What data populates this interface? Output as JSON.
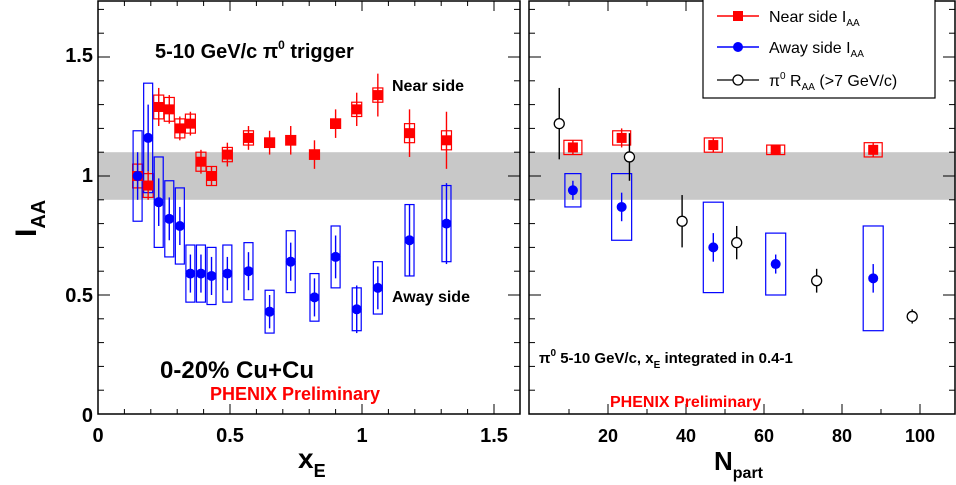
{
  "chart_data": [
    {
      "type": "scatter",
      "xlabel": "x",
      "xlabel_sub": "E",
      "ylabel": "I",
      "ylabel_sub": "AA",
      "xlim": [
        0,
        1.6
      ],
      "ylim": [
        0,
        1.75
      ],
      "x_ticks": [
        "0",
        "0.5",
        "1",
        "1.5"
      ],
      "y_ticks": [
        "0",
        "0.5",
        "1",
        "1.5"
      ],
      "band": [
        0.9,
        1.1
      ],
      "title_text": "5-10 GeV/c π",
      "title_sup": "0",
      "title_suffix": " trigger",
      "label_near": "Near side",
      "label_away": "Away side",
      "system_label": "0-20% Cu+Cu",
      "preliminary": "PHENIX Preliminary",
      "series": [
        {
          "name": "Near side I_AA",
          "color": "#ff0000",
          "marker": "square",
          "points": [
            {
              "x": 0.15,
              "y": 1.0,
              "err": 0.05,
              "sys": 0.05
            },
            {
              "x": 0.19,
              "y": 0.96,
              "err": 0.06,
              "sys": 0.05
            },
            {
              "x": 0.23,
              "y": 1.29,
              "err": 0.08,
              "sys": 0.05
            },
            {
              "x": 0.27,
              "y": 1.28,
              "err": 0.06,
              "sys": 0.05
            },
            {
              "x": 0.31,
              "y": 1.2,
              "err": 0.05,
              "sys": 0.04
            },
            {
              "x": 0.35,
              "y": 1.22,
              "err": 0.05,
              "sys": 0.04
            },
            {
              "x": 0.39,
              "y": 1.06,
              "err": 0.05,
              "sys": 0.04
            },
            {
              "x": 0.43,
              "y": 1.0,
              "err": 0.04,
              "sys": 0.04
            },
            {
              "x": 0.49,
              "y": 1.09,
              "err": 0.05,
              "sys": 0.03
            },
            {
              "x": 0.57,
              "y": 1.16,
              "err": 0.05,
              "sys": 0.03
            },
            {
              "x": 0.65,
              "y": 1.14,
              "err": 0.05,
              "sys": 0.02
            },
            {
              "x": 0.73,
              "y": 1.15,
              "err": 0.06,
              "sys": 0.02
            },
            {
              "x": 0.82,
              "y": 1.09,
              "err": 0.06,
              "sys": 0.02
            },
            {
              "x": 0.9,
              "y": 1.22,
              "err": 0.06,
              "sys": 0.02
            },
            {
              "x": 0.98,
              "y": 1.28,
              "err": 0.07,
              "sys": 0.03
            },
            {
              "x": 1.06,
              "y": 1.34,
              "err": 0.09,
              "sys": 0.03
            },
            {
              "x": 1.18,
              "y": 1.18,
              "err": 0.1,
              "sys": 0.04
            },
            {
              "x": 1.32,
              "y": 1.15,
              "err": 0.12,
              "sys": 0.04
            }
          ]
        },
        {
          "name": "Away side I_AA",
          "color": "#0000ff",
          "marker": "circle",
          "points": [
            {
              "x": 0.15,
              "y": 1.0,
              "err": 0.1,
              "sys": 0.19
            },
            {
              "x": 0.19,
              "y": 1.16,
              "err": 0.14,
              "sys": 0.23
            },
            {
              "x": 0.23,
              "y": 0.89,
              "err": 0.1,
              "sys": 0.19
            },
            {
              "x": 0.27,
              "y": 0.82,
              "err": 0.09,
              "sys": 0.16
            },
            {
              "x": 0.31,
              "y": 0.79,
              "err": 0.08,
              "sys": 0.16
            },
            {
              "x": 0.35,
              "y": 0.59,
              "err": 0.08,
              "sys": 0.12
            },
            {
              "x": 0.39,
              "y": 0.59,
              "err": 0.08,
              "sys": 0.12
            },
            {
              "x": 0.43,
              "y": 0.58,
              "err": 0.08,
              "sys": 0.12
            },
            {
              "x": 0.49,
              "y": 0.59,
              "err": 0.07,
              "sys": 0.12
            },
            {
              "x": 0.57,
              "y": 0.6,
              "err": 0.08,
              "sys": 0.12
            },
            {
              "x": 0.65,
              "y": 0.43,
              "err": 0.07,
              "sys": 0.09
            },
            {
              "x": 0.73,
              "y": 0.64,
              "err": 0.08,
              "sys": 0.13
            },
            {
              "x": 0.82,
              "y": 0.49,
              "err": 0.08,
              "sys": 0.1
            },
            {
              "x": 0.9,
              "y": 0.66,
              "err": 0.09,
              "sys": 0.13
            },
            {
              "x": 0.98,
              "y": 0.44,
              "err": 0.1,
              "sys": 0.09
            },
            {
              "x": 1.06,
              "y": 0.53,
              "err": 0.09,
              "sys": 0.11
            },
            {
              "x": 1.18,
              "y": 0.73,
              "err": 0.15,
              "sys": 0.15
            },
            {
              "x": 1.32,
              "y": 0.8,
              "err": 0.17,
              "sys": 0.16
            }
          ]
        }
      ]
    },
    {
      "type": "scatter",
      "xlabel": "N",
      "xlabel_sub": "part",
      "xlim": [
        0,
        106
      ],
      "ylim": [
        0,
        1.75
      ],
      "x_ticks": [
        "20",
        "40",
        "60",
        "80",
        "100"
      ],
      "band": [
        0.9,
        1.1
      ],
      "annotation_pre": "π",
      "annotation_sup": "0",
      "annotation_mid": " 5-10 GeV/c, x",
      "annotation_sub": "E",
      "annotation_post": " integrated in 0.4-1",
      "preliminary": "PHENIX Preliminary",
      "legend": {
        "placement": "top-right",
        "entries": [
          {
            "pre": "Near side I",
            "sub": "AA"
          },
          {
            "pre": "Away side I",
            "sub": "AA"
          },
          {
            "pre": "π",
            "sup": "0",
            "mid": " R",
            "sub": "AA",
            "post": "  (>7 GeV/c)"
          }
        ]
      },
      "series": [
        {
          "name": "Near side I_AA",
          "color": "#ff0000",
          "marker": "square",
          "points": [
            {
              "x": 11,
              "y": 1.12,
              "err": 0.03,
              "sys": 0.03
            },
            {
              "x": 23.5,
              "y": 1.16,
              "err": 0.04,
              "sys": 0.03
            },
            {
              "x": 47,
              "y": 1.13,
              "err": 0.03,
              "sys": 0.03
            },
            {
              "x": 63,
              "y": 1.11,
              "err": 0.02,
              "sys": 0.02
            },
            {
              "x": 88,
              "y": 1.11,
              "err": 0.03,
              "sys": 0.03
            }
          ]
        },
        {
          "name": "Away side I_AA",
          "color": "#0000ff",
          "marker": "circle",
          "points": [
            {
              "x": 11,
              "y": 0.94,
              "err": 0.04,
              "sys": 0.07
            },
            {
              "x": 23.5,
              "y": 0.87,
              "err": 0.06,
              "sys": 0.14
            },
            {
              "x": 47,
              "y": 0.7,
              "err": 0.06,
              "sys": 0.19
            },
            {
              "x": 63,
              "y": 0.63,
              "err": 0.04,
              "sys": 0.13
            },
            {
              "x": 88,
              "y": 0.57,
              "err": 0.06,
              "sys": 0.22
            }
          ]
        },
        {
          "name": "pi0 R_AA (>7 GeV/c)",
          "color": "#000000",
          "marker": "open-circle",
          "points": [
            {
              "x": 7.5,
              "y": 1.22,
              "err": 0.15
            },
            {
              "x": 25.5,
              "y": 1.08,
              "err": 0.1
            },
            {
              "x": 39,
              "y": 0.81,
              "err": 0.11
            },
            {
              "x": 53,
              "y": 0.72,
              "err": 0.07
            },
            {
              "x": 73.5,
              "y": 0.56,
              "err": 0.05
            },
            {
              "x": 98,
              "y": 0.41,
              "err": 0.03
            }
          ]
        }
      ]
    }
  ]
}
